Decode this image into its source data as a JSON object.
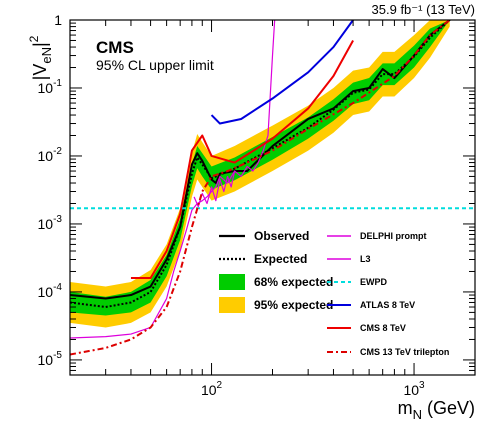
{
  "chart_data": {
    "type": "line",
    "experiment": "CMS",
    "subtitle": "95% CL upper limit",
    "lumi_label": "35.9 fb⁻¹ (13 TeV)",
    "ylabel": "|V_eN|^2",
    "xlabel": "m_N (GeV)",
    "x_scale": "log",
    "y_scale": "log",
    "xlim": [
      20,
      2000
    ],
    "ylim": [
      6e-06,
      1
    ],
    "x_ticks": [
      {
        "v": 100,
        "label": "10^2"
      },
      {
        "v": 1000,
        "label": "10^3"
      }
    ],
    "y_ticks": [
      {
        "v": 1e-05,
        "label": "10^-5"
      },
      {
        "v": 0.0001,
        "label": "10^-4"
      },
      {
        "v": 0.001,
        "label": "10^-3"
      },
      {
        "v": 0.01,
        "label": "10^-2"
      },
      {
        "v": 0.1,
        "label": "10^-1"
      },
      {
        "v": 1,
        "label": "1"
      }
    ],
    "bands": {
      "expected_95": {
        "name": "95% expected",
        "color": "#ffcc00",
        "x": [
          20,
          30,
          40,
          50,
          60,
          70,
          80,
          85,
          90,
          100,
          130,
          200,
          300,
          400,
          500,
          600,
          700,
          800,
          1000,
          1200,
          1500
        ],
        "lower": [
          3.5e-05,
          3e-05,
          3.5e-05,
          5e-05,
          0.00012,
          0.0004,
          0.0025,
          0.0045,
          0.0035,
          0.0022,
          0.003,
          0.006,
          0.012,
          0.022,
          0.04,
          0.045,
          0.075,
          0.075,
          0.14,
          0.28,
          0.8
        ],
        "upper": [
          0.00014,
          0.00012,
          0.00014,
          0.00021,
          0.0005,
          0.0017,
          0.011,
          0.021,
          0.016,
          0.01,
          0.014,
          0.028,
          0.055,
          0.1,
          0.18,
          0.2,
          0.34,
          0.34,
          0.6,
          1.0,
          1.0
        ]
      },
      "expected_68": {
        "name": "68% expected",
        "color": "#00cc00",
        "x": [
          20,
          30,
          40,
          50,
          60,
          70,
          80,
          85,
          90,
          100,
          130,
          200,
          300,
          400,
          500,
          600,
          700,
          800,
          1000,
          1200,
          1500
        ],
        "lower": [
          5e-05,
          4.5e-05,
          5e-05,
          7e-05,
          0.00017,
          0.00058,
          0.0036,
          0.0066,
          0.005,
          0.0032,
          0.0044,
          0.0088,
          0.018,
          0.033,
          0.058,
          0.066,
          0.11,
          0.11,
          0.2,
          0.4,
          1.0
        ],
        "upper": [
          0.0001,
          8.5e-05,
          0.0001,
          0.00015,
          0.00035,
          0.0012,
          0.0075,
          0.014,
          0.011,
          0.007,
          0.0095,
          0.019,
          0.037,
          0.068,
          0.12,
          0.14,
          0.23,
          0.23,
          0.42,
          0.75,
          1.0
        ]
      }
    },
    "series": [
      {
        "name": "Expected",
        "color": "#000000",
        "style": "dotted",
        "width": 2,
        "x": [
          20,
          30,
          40,
          50,
          60,
          70,
          80,
          85,
          90,
          100,
          130,
          200,
          300,
          400,
          500,
          600,
          700,
          800,
          1000,
          1200,
          1500
        ],
        "y": [
          7e-05,
          6e-05,
          7e-05,
          0.0001,
          0.00025,
          0.0009,
          0.0055,
          0.0095,
          0.0075,
          0.0047,
          0.0065,
          0.013,
          0.026,
          0.048,
          0.085,
          0.095,
          0.16,
          0.16,
          0.29,
          0.55,
          1.0
        ]
      },
      {
        "name": "Observed",
        "color": "#000000",
        "style": "solid",
        "width": 2,
        "x": [
          20,
          30,
          40,
          50,
          60,
          70,
          80,
          85,
          90,
          100,
          105,
          110,
          130,
          150,
          200,
          300,
          400,
          500,
          600,
          700,
          800,
          1000,
          1200,
          1500
        ],
        "y": [
          9e-05,
          8e-05,
          9e-05,
          0.00012,
          0.0003,
          0.0009,
          0.0075,
          0.011,
          0.0085,
          0.0045,
          0.004,
          0.0055,
          0.006,
          0.006,
          0.014,
          0.035,
          0.05,
          0.09,
          0.1,
          0.19,
          0.14,
          0.3,
          0.6,
          1.0
        ]
      },
      {
        "name": "DELPHI prompt",
        "color": "#dd00dd",
        "style": "solid",
        "width": 1.2,
        "x": [
          20,
          30,
          40,
          50,
          60,
          65,
          70,
          75,
          80,
          85,
          90,
          95,
          100,
          105,
          110,
          120,
          130,
          140,
          150,
          160,
          170,
          180,
          190,
          200,
          205
        ],
        "y": [
          2.1e-05,
          2.2e-05,
          2.4e-05,
          3e-05,
          8e-05,
          0.0002,
          0.0004,
          0.0008,
          0.0016,
          0.002,
          0.0022,
          0.0025,
          0.003,
          0.0035,
          0.005,
          0.004,
          0.006,
          0.005,
          0.007,
          0.006,
          0.008,
          0.012,
          0.02,
          0.3,
          1.0
        ]
      },
      {
        "name": "L3",
        "color": "#dd00dd",
        "style": "solid",
        "width": 1.2,
        "x": [
          82,
          86,
          90,
          95,
          100,
          105,
          110,
          115,
          120,
          125,
          130
        ],
        "y": [
          0.0025,
          0.0018,
          0.0028,
          0.002,
          0.0035,
          0.0022,
          0.0045,
          0.003,
          0.005,
          0.0035,
          0.006
        ]
      },
      {
        "name": "EWPD",
        "color": "#00dddd",
        "style": "dashed",
        "width": 2,
        "x": [
          20,
          2000
        ],
        "y": [
          0.0017,
          0.0017
        ]
      },
      {
        "name": "ATLAS 8 TeV",
        "color": "#0000dd",
        "style": "solid",
        "width": 2,
        "x": [
          100,
          110,
          140,
          200,
          300,
          400,
          500
        ],
        "y": [
          0.04,
          0.03,
          0.035,
          0.07,
          0.17,
          0.4,
          1.0
        ]
      },
      {
        "name": "CMS 8 TeV",
        "color": "#ee0000",
        "style": "solid",
        "width": 2,
        "x": [
          40,
          50,
          60,
          70,
          80,
          90,
          100,
          130,
          200,
          300,
          400,
          500
        ],
        "y": [
          0.00016,
          0.00016,
          0.0004,
          0.0014,
          0.012,
          0.02,
          0.01,
          0.008,
          0.018,
          0.05,
          0.15,
          0.5
        ]
      },
      {
        "name": "CMS 13 TeV trilepton",
        "color": "#dd0000",
        "style": "dashdot",
        "width": 2,
        "x": [
          20,
          30,
          40,
          50,
          60,
          70,
          80,
          90,
          100,
          120,
          150,
          200,
          300,
          500,
          800,
          1000,
          1200,
          1500
        ],
        "y": [
          1.2e-05,
          1.5e-05,
          2e-05,
          3e-05,
          6e-05,
          0.0002,
          0.0009,
          0.003,
          0.005,
          0.006,
          0.008,
          0.012,
          0.025,
          0.06,
          0.15,
          0.3,
          0.6,
          1.0
        ]
      }
    ],
    "legend": [
      {
        "label": "Observed",
        "kind": "solid-black"
      },
      {
        "label": "Expected",
        "kind": "dotted-black"
      },
      {
        "label": "68% expected",
        "kind": "box",
        "color": "#00cc00"
      },
      {
        "label": "95% expected",
        "kind": "box",
        "color": "#ffcc00"
      },
      {
        "label": "DELPHI prompt",
        "kind": "line",
        "color": "#dd00dd",
        "style": "solid"
      },
      {
        "label": "L3",
        "kind": "line",
        "color": "#dd00dd",
        "style": "solid"
      },
      {
        "label": "EWPD",
        "kind": "line",
        "color": "#00dddd",
        "style": "dashed"
      },
      {
        "label": "ATLAS 8 TeV",
        "kind": "line",
        "color": "#0000dd",
        "style": "solid"
      },
      {
        "label": "CMS 8 TeV",
        "kind": "line",
        "color": "#ee0000",
        "style": "solid"
      },
      {
        "label": "CMS 13 TeV trilepton",
        "kind": "line",
        "color": "#dd0000",
        "style": "dashdot"
      }
    ],
    "grid": false
  }
}
